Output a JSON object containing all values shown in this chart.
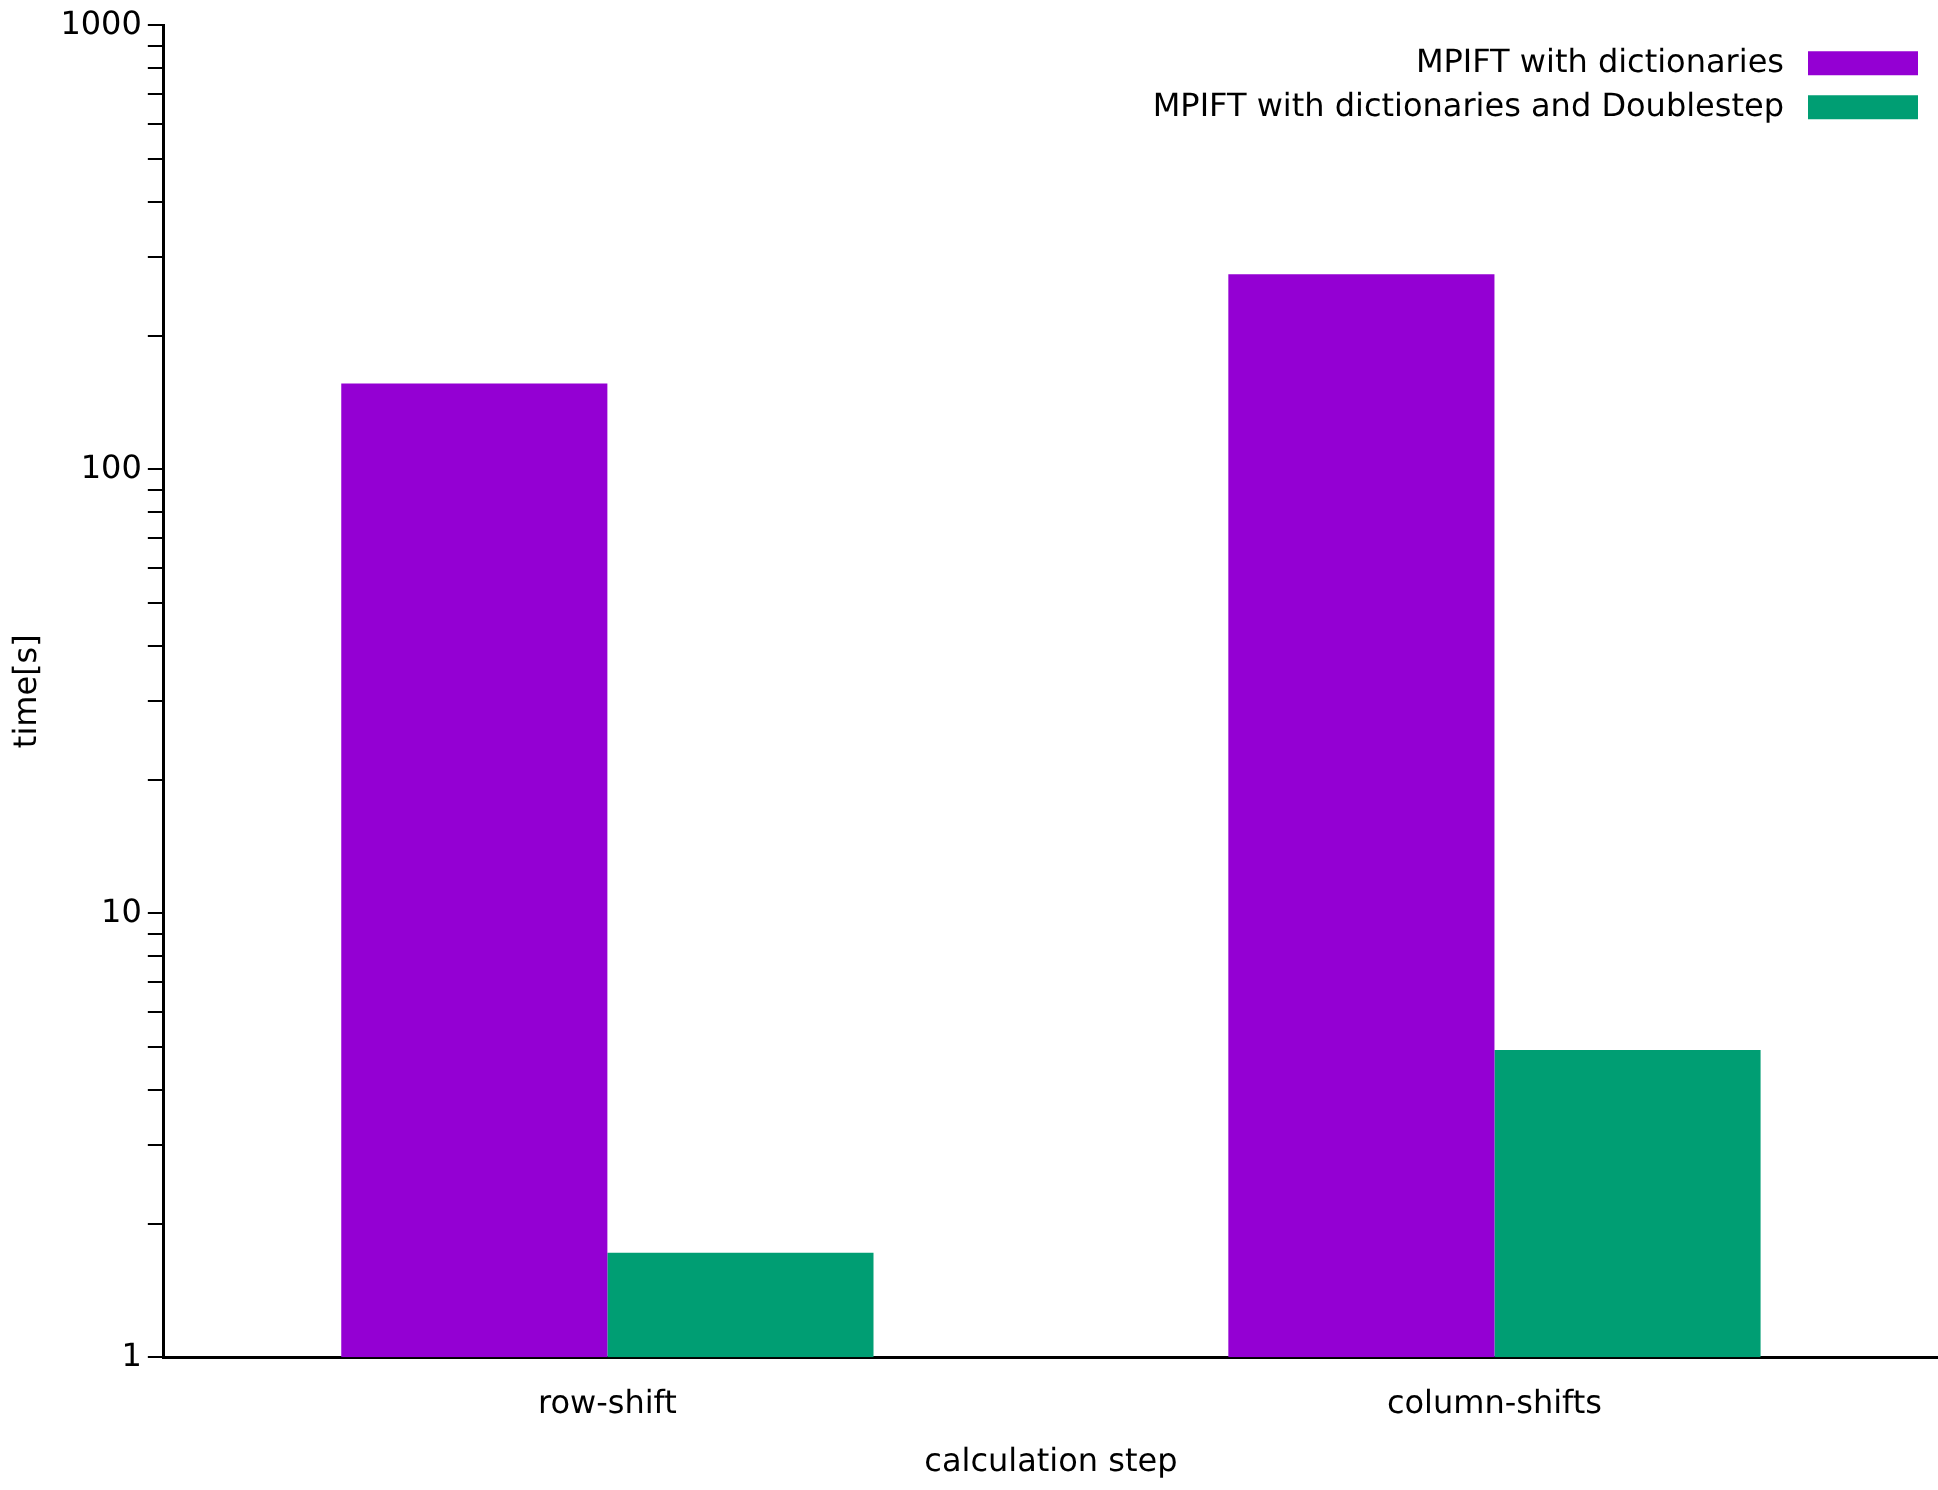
{
  "chart_data": {
    "type": "bar",
    "xlabel": "calculation step",
    "ylabel": "time[s]",
    "categories": [
      "row-shift",
      "column-shifts"
    ],
    "series": [
      {
        "name": "MPIFT with dictionaries",
        "color": "#9400d3",
        "values": [
          156,
          275
        ]
      },
      {
        "name": "MPIFT with dictionaries and Doublestep",
        "color": "#009e73",
        "values": [
          1.72,
          4.92
        ]
      }
    ],
    "log": "y",
    "ylim": [
      1,
      1000
    ],
    "yticks": [
      1,
      {
        "value": 2,
        "label": null
      },
      {
        "value": 3,
        "label": null
      },
      {
        "value": 4,
        "label": null
      },
      {
        "value": 5,
        "label": null
      },
      {
        "value": 6,
        "label": null
      },
      {
        "value": 7,
        "label": null
      },
      {
        "value": 8,
        "label": null
      },
      {
        "value": 9,
        "label": null
      },
      10,
      {
        "value": 20,
        "label": null
      },
      {
        "value": 30,
        "label": null
      },
      {
        "value": 40,
        "label": null
      },
      {
        "value": 50,
        "label": null
      },
      {
        "value": 60,
        "label": null
      },
      {
        "value": 70,
        "label": null
      },
      {
        "value": 80,
        "label": null
      },
      {
        "value": 90,
        "label": null
      },
      100,
      {
        "value": 200,
        "label": null
      },
      {
        "value": 300,
        "label": null
      },
      {
        "value": 400,
        "label": null
      },
      {
        "value": 500,
        "label": null
      },
      {
        "value": 600,
        "label": null
      },
      {
        "value": 700,
        "label": null
      },
      {
        "value": 800,
        "label": null
      },
      {
        "value": 900,
        "label": null
      },
      1000
    ],
    "grid": false,
    "legend": "top right"
  }
}
